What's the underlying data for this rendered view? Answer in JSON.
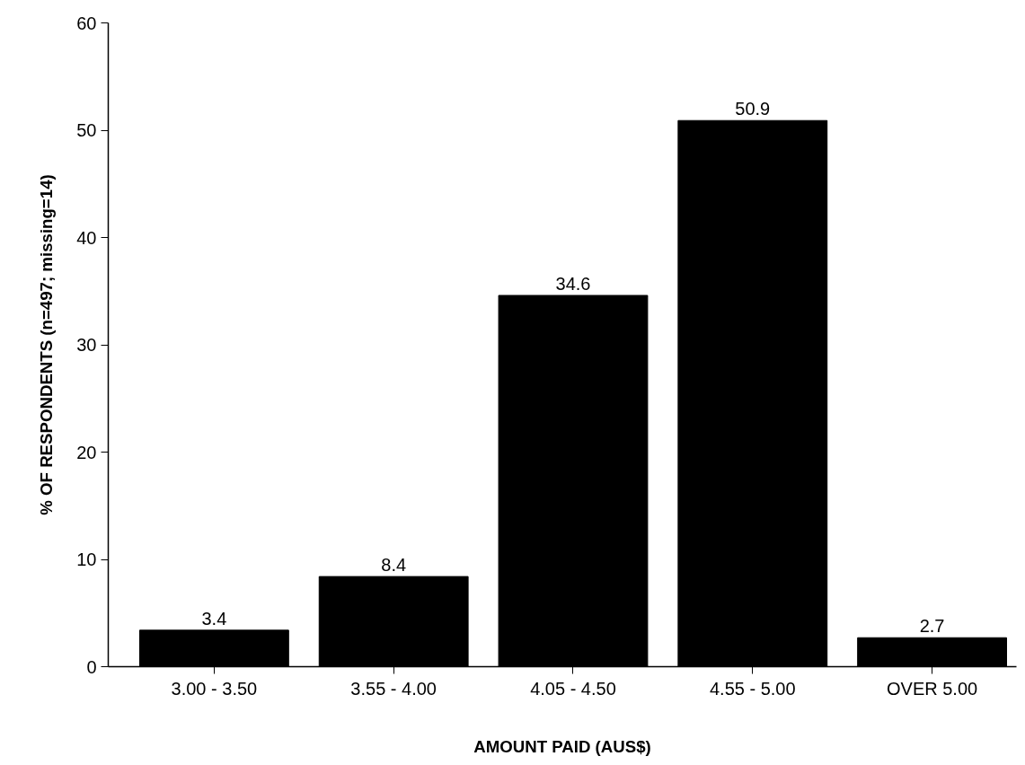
{
  "chart_data": {
    "type": "bar",
    "xlabel": "AMOUNT PAID (AUS$)",
    "ylabel": "% OF RESPONDENTS (n=497; missing=14)",
    "categories": [
      "3.00 - 3.50",
      "3.55 - 4.00",
      "4.05 - 4.50",
      "4.55 - 5.00",
      "OVER 5.00"
    ],
    "values": [
      3.4,
      8.4,
      34.6,
      50.9,
      2.7
    ],
    "color": "#000000",
    "data_labels": true,
    "ylim": [
      0,
      60
    ],
    "yticks": [
      0,
      10,
      20,
      30,
      40,
      50,
      60
    ],
    "grid": false
  }
}
